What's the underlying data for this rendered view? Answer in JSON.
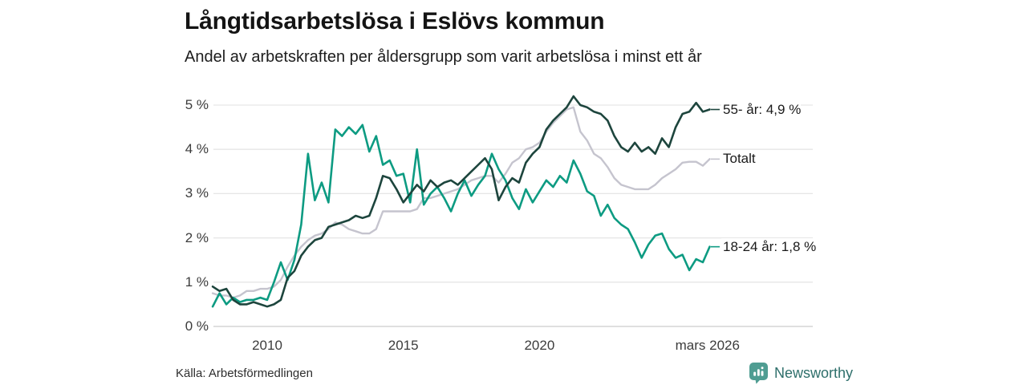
{
  "header": {
    "title": "Långtidsarbetslösa i Eslövs kommun",
    "subtitle": "Andel av arbetskraften per åldersgrupp som varit arbetslösa i minst ett år"
  },
  "footer": {
    "source": "Källa: Arbetsförmedlingen",
    "brand": "Newsworthy",
    "brand_icon": "bar-chart-badge-icon",
    "brand_icon_color": "#4f9d92",
    "brand_text_color": "#2e6f6b"
  },
  "colors": {
    "grid": "#e6e6e6",
    "axis_line": "#cccccc",
    "tick_text": "#3c3c3c",
    "label_text": "#1a1a1a"
  },
  "chart_data": {
    "type": "line",
    "title": "Långtidsarbetslösa i Eslövs kommun",
    "subtitle": "Andel av arbetskraften per åldersgrupp som varit arbetslösa i minst ett år",
    "xlabel": "",
    "ylabel": "",
    "xlim": [
      2008,
      2026.35
    ],
    "ylim": [
      0,
      5.4
    ],
    "grid": true,
    "legend_position": "end-of-line-labels-right",
    "x": [
      2008,
      2008.25,
      2008.5,
      2008.75,
      2009,
      2009.25,
      2009.5,
      2009.75,
      2010,
      2010.25,
      2010.5,
      2010.75,
      2011,
      2011.25,
      2011.5,
      2011.75,
      2012,
      2012.25,
      2012.5,
      2012.75,
      2013,
      2013.25,
      2013.5,
      2013.75,
      2014,
      2014.25,
      2014.5,
      2014.75,
      2015,
      2015.25,
      2015.5,
      2015.75,
      2016,
      2016.25,
      2016.5,
      2016.75,
      2017,
      2017.25,
      2017.5,
      2017.75,
      2018,
      2018.25,
      2018.5,
      2018.75,
      2019,
      2019.25,
      2019.5,
      2019.75,
      2020,
      2020.25,
      2020.5,
      2020.75,
      2021,
      2021.25,
      2021.5,
      2021.75,
      2022,
      2022.25,
      2022.5,
      2022.75,
      2023,
      2023.25,
      2023.5,
      2023.75,
      2024,
      2024.25,
      2024.5,
      2024.75,
      2025,
      2025.25,
      2025.5,
      2025.75,
      2026,
      2026.25
    ],
    "series": [
      {
        "name": "Totalt",
        "end_label": "Totalt",
        "end_value_text": "Totalt",
        "color": "#c5c4ce",
        "values": [
          0.75,
          0.7,
          0.7,
          0.65,
          0.7,
          0.8,
          0.8,
          0.85,
          0.85,
          0.9,
          1.05,
          1.35,
          1.6,
          1.8,
          1.95,
          2.05,
          2.1,
          2.2,
          2.35,
          2.3,
          2.2,
          2.15,
          2.1,
          2.1,
          2.2,
          2.6,
          2.6,
          2.6,
          2.6,
          2.6,
          2.65,
          2.9,
          2.9,
          2.95,
          3.0,
          3.05,
          3.1,
          3.2,
          3.3,
          3.35,
          3.4,
          3.4,
          3.25,
          3.45,
          3.7,
          3.8,
          4.0,
          4.05,
          4.15,
          4.4,
          4.6,
          4.75,
          4.9,
          4.95,
          4.4,
          4.2,
          3.9,
          3.8,
          3.6,
          3.35,
          3.2,
          3.15,
          3.1,
          3.1,
          3.1,
          3.2,
          3.35,
          3.45,
          3.55,
          3.7,
          3.72,
          3.72,
          3.63,
          3.78
        ]
      },
      {
        "name": "18-24 år",
        "end_label": "18-24 år: 1,8 %",
        "end_value_text": "1,8 %",
        "color": "#0d9b82",
        "values": [
          0.45,
          0.75,
          0.5,
          0.65,
          0.55,
          0.6,
          0.6,
          0.65,
          0.6,
          1.0,
          1.45,
          1.05,
          1.5,
          2.3,
          3.9,
          2.85,
          3.25,
          2.8,
          4.45,
          4.3,
          4.5,
          4.35,
          4.55,
          3.95,
          4.3,
          3.65,
          3.75,
          3.4,
          3.45,
          2.8,
          4.0,
          2.75,
          3.0,
          3.15,
          2.9,
          2.6,
          3.0,
          3.3,
          2.95,
          3.2,
          3.4,
          3.9,
          3.55,
          3.3,
          2.9,
          2.65,
          3.1,
          2.8,
          3.05,
          3.3,
          3.15,
          3.4,
          3.25,
          3.75,
          3.45,
          3.05,
          2.95,
          2.5,
          2.75,
          2.45,
          2.3,
          2.2,
          1.9,
          1.55,
          1.85,
          2.05,
          2.1,
          1.75,
          1.55,
          1.62,
          1.27,
          1.52,
          1.45,
          1.8
        ]
      },
      {
        "name": "55- år",
        "end_label": "55- år: 4,9 %",
        "end_value_text": "4,9 %",
        "color": "#1d453d",
        "values": [
          0.9,
          0.8,
          0.85,
          0.6,
          0.5,
          0.5,
          0.55,
          0.5,
          0.45,
          0.5,
          0.6,
          1.1,
          1.25,
          1.6,
          1.8,
          1.95,
          2.0,
          2.25,
          2.3,
          2.35,
          2.4,
          2.5,
          2.45,
          2.5,
          2.9,
          3.4,
          3.35,
          3.1,
          2.8,
          3.0,
          3.2,
          3.05,
          3.3,
          3.15,
          3.25,
          3.3,
          3.2,
          3.35,
          3.5,
          3.65,
          3.8,
          3.55,
          2.85,
          3.15,
          3.35,
          3.25,
          3.7,
          3.9,
          4.05,
          4.45,
          4.65,
          4.8,
          4.95,
          5.2,
          5.0,
          4.95,
          4.85,
          4.8,
          4.65,
          4.3,
          4.05,
          3.95,
          4.15,
          3.95,
          4.05,
          3.9,
          4.25,
          4.05,
          4.5,
          4.8,
          4.85,
          5.05,
          4.85,
          4.9
        ]
      }
    ],
    "yticks": [
      {
        "label": "0 %",
        "v": 0
      },
      {
        "label": "1 %",
        "v": 1
      },
      {
        "label": "2 %",
        "v": 2
      },
      {
        "label": "3 %",
        "v": 3
      },
      {
        "label": "4 %",
        "v": 4
      },
      {
        "label": "5 %",
        "v": 5
      }
    ],
    "xticks": [
      {
        "label": "2010",
        "x": 2010
      },
      {
        "label": "2015",
        "x": 2015
      },
      {
        "label": "2020",
        "x": 2020
      },
      {
        "label": "mars 2026",
        "x": 2026.17
      }
    ]
  }
}
